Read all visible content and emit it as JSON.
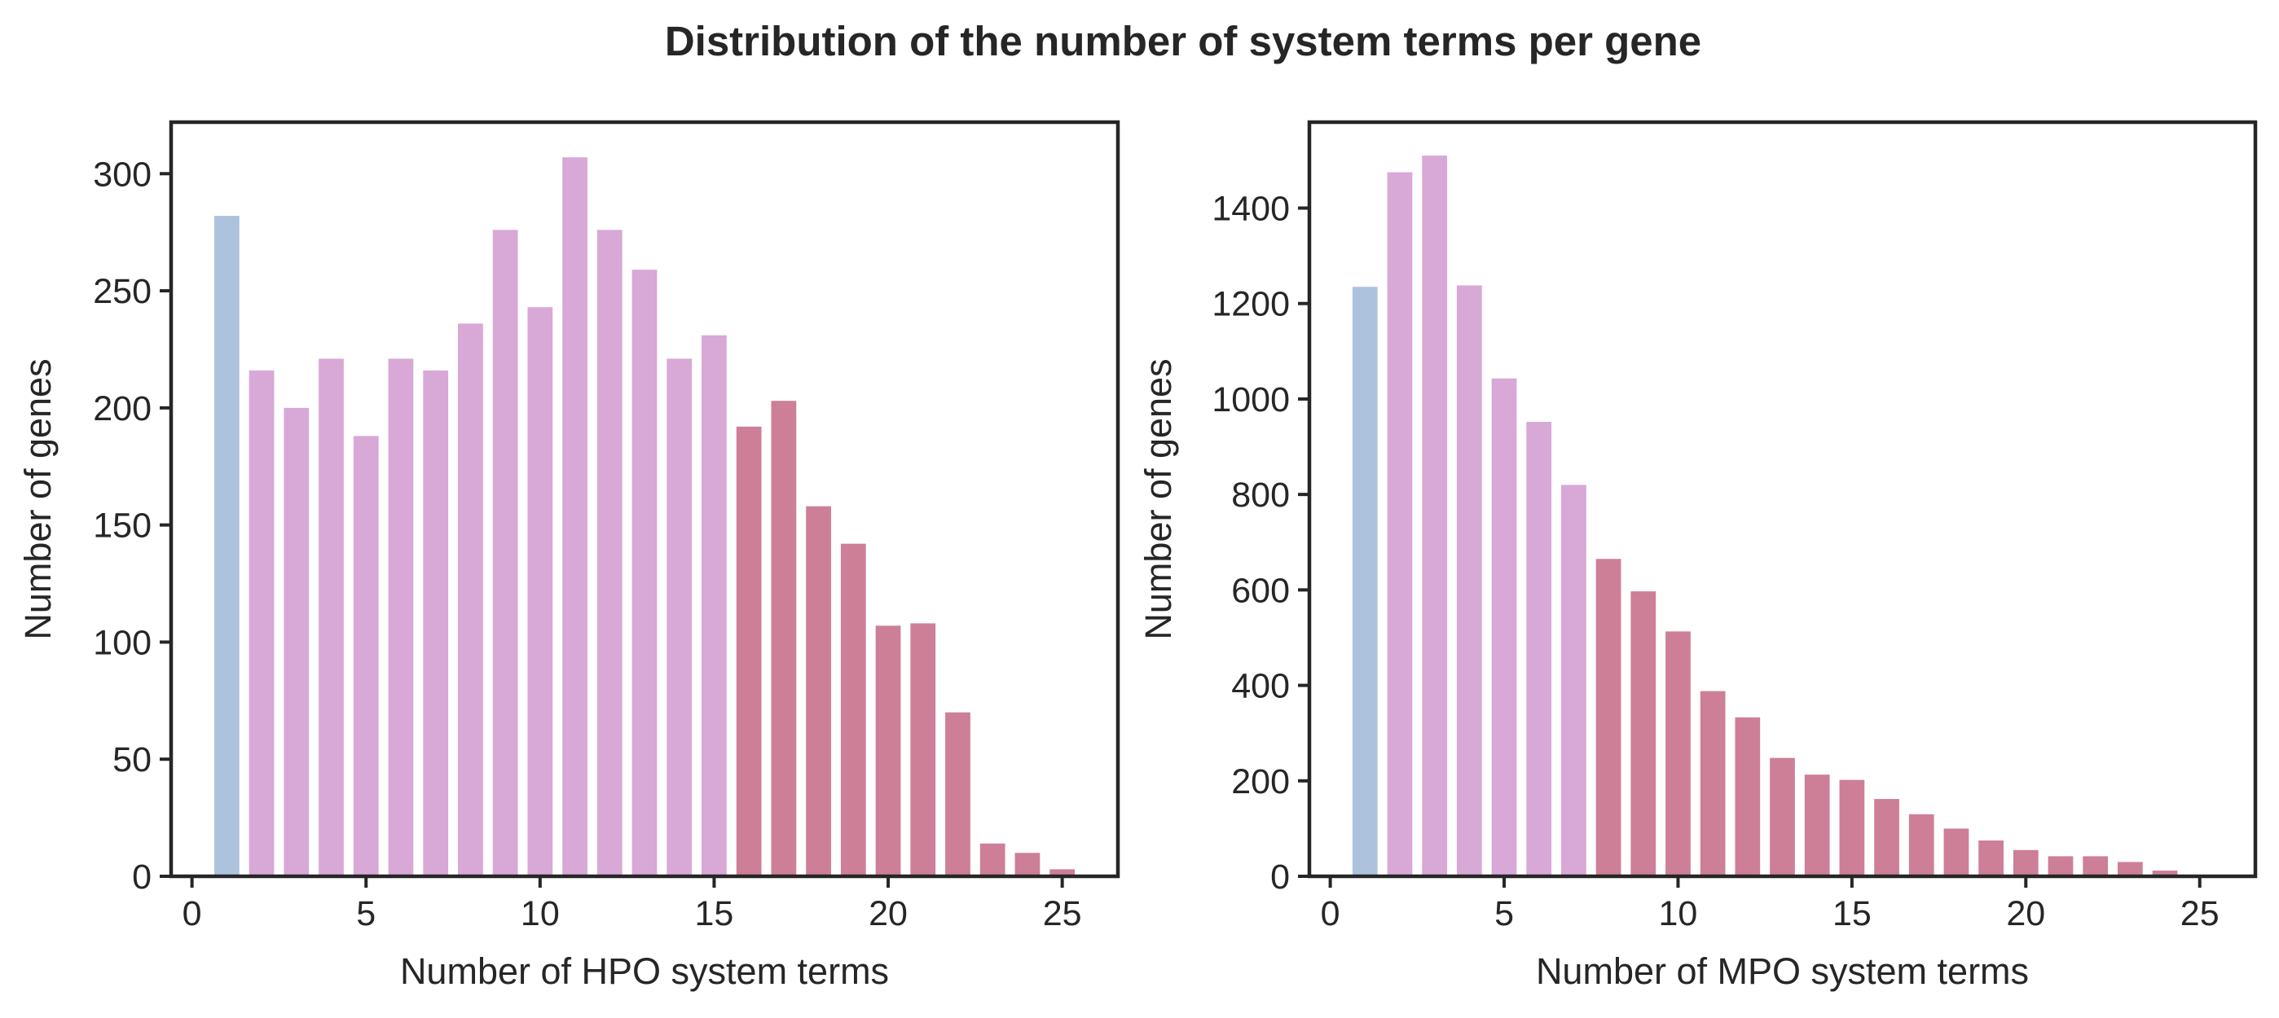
{
  "title": "Distribution of the number of system terms per gene",
  "colors": {
    "low": "#adc2dd",
    "mid": "#d8a8d7",
    "high": "#cd7f97",
    "text": "#262626"
  },
  "chart_data": [
    {
      "type": "bar",
      "xlabel": "Number of HPO system terms",
      "ylabel": "Number of genes",
      "xlim": [
        -0.6,
        26.6
      ],
      "ylim": [
        0,
        322
      ],
      "xticks": [
        0,
        5,
        10,
        15,
        20,
        25
      ],
      "yticks": [
        0,
        50,
        100,
        150,
        200,
        250,
        300
      ],
      "grid": false,
      "x": [
        1,
        2,
        3,
        4,
        5,
        6,
        7,
        8,
        9,
        10,
        11,
        12,
        13,
        14,
        15,
        16,
        17,
        18,
        19,
        20,
        21,
        22,
        23,
        24,
        25
      ],
      "values": [
        282,
        216,
        200,
        221,
        188,
        221,
        216,
        236,
        276,
        243,
        307,
        276,
        259,
        221,
        231,
        192,
        203,
        158,
        142,
        107,
        108,
        70,
        14,
        10,
        3
      ],
      "groups": [
        "low",
        "mid",
        "mid",
        "mid",
        "mid",
        "mid",
        "mid",
        "mid",
        "mid",
        "mid",
        "mid",
        "mid",
        "mid",
        "mid",
        "mid",
        "high",
        "high",
        "high",
        "high",
        "high",
        "high",
        "high",
        "high",
        "high",
        "high"
      ]
    },
    {
      "type": "bar",
      "xlabel": "Number of MPO system terms",
      "ylabel": "Number of genes",
      "xlim": [
        -0.6,
        26.6
      ],
      "ylim": [
        0,
        1580
      ],
      "xticks": [
        0,
        5,
        10,
        15,
        20,
        25
      ],
      "yticks": [
        0,
        200,
        400,
        600,
        800,
        1000,
        1200,
        1400
      ],
      "grid": false,
      "x": [
        1,
        2,
        3,
        4,
        5,
        6,
        7,
        8,
        9,
        10,
        11,
        12,
        13,
        14,
        15,
        16,
        17,
        18,
        19,
        20,
        21,
        22,
        23,
        24
      ],
      "values": [
        1235,
        1475,
        1510,
        1238,
        1043,
        952,
        820,
        665,
        597,
        513,
        388,
        333,
        248,
        213,
        202,
        162,
        130,
        100,
        75,
        55,
        42,
        42,
        30,
        12
      ],
      "groups": [
        "low",
        "mid",
        "mid",
        "mid",
        "mid",
        "mid",
        "mid",
        "high",
        "high",
        "high",
        "high",
        "high",
        "high",
        "high",
        "high",
        "high",
        "high",
        "high",
        "high",
        "high",
        "high",
        "high",
        "high",
        "high"
      ]
    }
  ]
}
